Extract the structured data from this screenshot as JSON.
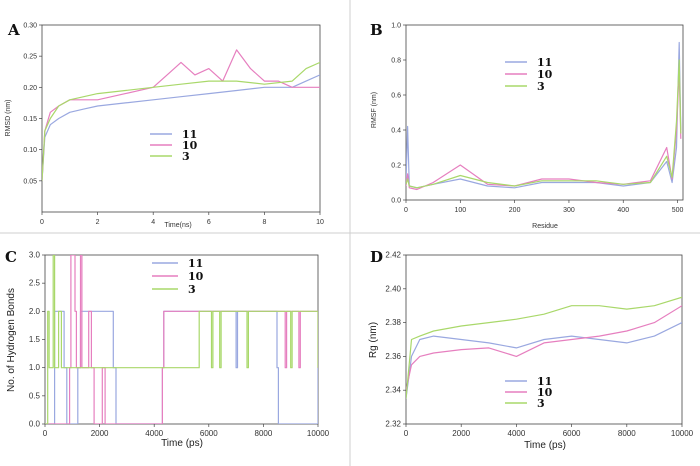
{
  "colors": {
    "s11": "#9aa8e0",
    "s10": "#e67fbf",
    "s3": "#a9d86a"
  },
  "chart_data": [
    {
      "panel": "A",
      "type": "line",
      "title": "",
      "xlabel": "Time(ns)",
      "ylabel": "RMSD (nm)",
      "xlim": [
        0,
        10
      ],
      "ylim": [
        0,
        0.3
      ],
      "xticks": [
        0,
        2,
        4,
        6,
        8,
        10
      ],
      "yticks": [
        0.05,
        0.1,
        0.15,
        0.2,
        0.25,
        0.3
      ],
      "xticklabels": [
        "0",
        "2",
        "4",
        "6",
        "8",
        "10"
      ],
      "yticklabels": [
        "0.05",
        "0.10",
        "0.15",
        "0.20",
        "0.25",
        "0.30"
      ],
      "legend_position": "center",
      "series": [
        {
          "name": "11",
          "color": "s11",
          "x": [
            0,
            0.1,
            0.3,
            0.6,
            1,
            1.5,
            2,
            3,
            4,
            5,
            6,
            7,
            8,
            9,
            9.5,
            10
          ],
          "values": [
            0.05,
            0.12,
            0.14,
            0.15,
            0.16,
            0.165,
            0.17,
            0.175,
            0.18,
            0.185,
            0.19,
            0.195,
            0.2,
            0.2,
            0.21,
            0.22
          ]
        },
        {
          "name": "10",
          "color": "s10",
          "x": [
            0,
            0.1,
            0.3,
            0.6,
            1,
            2,
            3,
            4,
            4.5,
            5,
            5.5,
            6,
            6.5,
            7,
            7.5,
            8,
            8.5,
            9,
            9.5,
            10
          ],
          "values": [
            0.05,
            0.13,
            0.16,
            0.17,
            0.18,
            0.18,
            0.19,
            0.2,
            0.22,
            0.24,
            0.22,
            0.23,
            0.21,
            0.26,
            0.23,
            0.21,
            0.21,
            0.2,
            0.2,
            0.2
          ]
        },
        {
          "name": "3",
          "color": "s3",
          "x": [
            0,
            0.1,
            0.3,
            0.6,
            1,
            2,
            3,
            4,
            5,
            6,
            7,
            8,
            9,
            9.5,
            10
          ],
          "values": [
            0.05,
            0.13,
            0.15,
            0.17,
            0.18,
            0.19,
            0.195,
            0.2,
            0.205,
            0.21,
            0.21,
            0.205,
            0.21,
            0.23,
            0.24
          ]
        }
      ]
    },
    {
      "panel": "B",
      "type": "line",
      "title": "",
      "xlabel": "Residue",
      "ylabel": "RMSF (nm)",
      "xlim": [
        0,
        510
      ],
      "ylim": [
        0,
        1.0
      ],
      "xticks": [
        0,
        100,
        200,
        300,
        400,
        500
      ],
      "yticks": [
        0,
        0.2,
        0.4,
        0.6,
        0.8,
        1.0
      ],
      "xticklabels": [
        "0",
        "100",
        "200",
        "300",
        "400",
        "500"
      ],
      "yticklabels": [
        "0.0",
        "0.2",
        "0.4",
        "0.6",
        "0.8",
        "1.0"
      ],
      "legend_position": "top-center",
      "series": [
        {
          "name": "11",
          "color": "s11",
          "x": [
            0,
            3,
            6,
            20,
            50,
            100,
            150,
            200,
            250,
            300,
            350,
            400,
            450,
            480,
            490,
            498,
            503,
            506
          ],
          "values": [
            0.1,
            0.42,
            0.08,
            0.07,
            0.09,
            0.12,
            0.08,
            0.07,
            0.1,
            0.1,
            0.1,
            0.08,
            0.1,
            0.22,
            0.1,
            0.3,
            0.9,
            0.4
          ]
        },
        {
          "name": "10",
          "color": "s10",
          "x": [
            0,
            3,
            6,
            20,
            50,
            100,
            150,
            200,
            250,
            300,
            350,
            400,
            450,
            480,
            490,
            498,
            503,
            506
          ],
          "values": [
            0.08,
            0.15,
            0.07,
            0.06,
            0.1,
            0.2,
            0.09,
            0.08,
            0.12,
            0.12,
            0.1,
            0.09,
            0.11,
            0.3,
            0.12,
            0.4,
            0.75,
            0.35
          ]
        },
        {
          "name": "3",
          "color": "s3",
          "x": [
            0,
            3,
            6,
            20,
            50,
            100,
            150,
            200,
            250,
            300,
            350,
            400,
            450,
            480,
            490,
            498,
            503,
            506
          ],
          "values": [
            0.09,
            0.12,
            0.08,
            0.07,
            0.09,
            0.14,
            0.1,
            0.08,
            0.11,
            0.11,
            0.11,
            0.09,
            0.1,
            0.25,
            0.13,
            0.45,
            0.8,
            0.38
          ]
        }
      ]
    },
    {
      "panel": "C",
      "type": "line",
      "title": "",
      "xlabel": "Time (ps)",
      "ylabel": "No. of Hydrogen Bonds",
      "xlim": [
        0,
        10000
      ],
      "ylim": [
        0,
        3
      ],
      "xticks": [
        0,
        2000,
        4000,
        6000,
        8000,
        10000
      ],
      "yticks": [
        0,
        0.5,
        1,
        1.5,
        2,
        2.5,
        3
      ],
      "xticklabels": [
        "0",
        "2000",
        "4000",
        "6000",
        "8000",
        "10000"
      ],
      "yticklabels": [
        "0.0",
        "0.5",
        "1.0",
        "1.5",
        "2.0",
        "2.5",
        "3.0"
      ],
      "legend_position": "top-center",
      "series": [
        {
          "name": "11",
          "color": "s11",
          "x": [
            0,
            300,
            350,
            700,
            800,
            1200,
            1300,
            2500,
            2600,
            4300,
            4350,
            7000,
            7050,
            8500,
            8550,
            10000
          ],
          "values": [
            0,
            0,
            2,
            1,
            0,
            1,
            2,
            1,
            0,
            1,
            2,
            1,
            2,
            1,
            0,
            1
          ]
        },
        {
          "name": "10",
          "color": "s10",
          "x": [
            0,
            900,
            950,
            1100,
            1150,
            1300,
            1350,
            1600,
            1700,
            1800,
            2100,
            2200,
            4300,
            4350,
            8800,
            8850,
            9300,
            9350,
            10000
          ],
          "values": [
            0,
            1,
            3,
            2,
            1,
            3,
            1,
            2,
            1,
            0,
            1,
            0,
            1,
            2,
            1,
            2,
            1,
            2,
            1
          ]
        },
        {
          "name": "3",
          "color": "s3",
          "x": [
            0,
            100,
            150,
            300,
            350,
            500,
            600,
            2600,
            5600,
            5650,
            6100,
            6150,
            6400,
            6450,
            7400,
            7450,
            9000,
            9050,
            10000
          ],
          "values": [
            0,
            2,
            1,
            3,
            1,
            2,
            1,
            1,
            1,
            2,
            1,
            2,
            1,
            2,
            1,
            2,
            1,
            2,
            1
          ]
        }
      ]
    },
    {
      "panel": "D",
      "type": "line",
      "title": "",
      "xlabel": "Time (ps)",
      "ylabel": "Rg (nm)",
      "xlim": [
        0,
        10000
      ],
      "ylim": [
        2.32,
        2.42
      ],
      "xticks": [
        0,
        2000,
        4000,
        6000,
        8000,
        10000
      ],
      "yticks": [
        2.32,
        2.34,
        2.36,
        2.38,
        2.4,
        2.42
      ],
      "xticklabels": [
        "0",
        "2000",
        "4000",
        "6000",
        "8000",
        "10000"
      ],
      "yticklabels": [
        "2.32",
        "2.34",
        "2.36",
        "2.38",
        "2.40",
        "2.42"
      ],
      "legend_position": "bottom-center",
      "series": [
        {
          "name": "11",
          "color": "s11",
          "x": [
            0,
            200,
            500,
            1000,
            2000,
            3000,
            4000,
            5000,
            6000,
            7000,
            8000,
            9000,
            10000
          ],
          "values": [
            2.335,
            2.36,
            2.37,
            2.372,
            2.37,
            2.368,
            2.365,
            2.37,
            2.372,
            2.37,
            2.368,
            2.372,
            2.38
          ]
        },
        {
          "name": "10",
          "color": "s10",
          "x": [
            0,
            200,
            500,
            1000,
            2000,
            3000,
            4000,
            5000,
            6000,
            7000,
            8000,
            9000,
            10000
          ],
          "values": [
            2.34,
            2.355,
            2.36,
            2.362,
            2.364,
            2.365,
            2.36,
            2.368,
            2.37,
            2.372,
            2.375,
            2.38,
            2.39
          ]
        },
        {
          "name": "3",
          "color": "s3",
          "x": [
            0,
            200,
            500,
            1000,
            2000,
            3000,
            4000,
            5000,
            6000,
            7000,
            8000,
            9000,
            10000
          ],
          "values": [
            2.335,
            2.37,
            2.372,
            2.375,
            2.378,
            2.38,
            2.382,
            2.385,
            2.39,
            2.39,
            2.388,
            2.39,
            2.395
          ]
        }
      ]
    }
  ]
}
